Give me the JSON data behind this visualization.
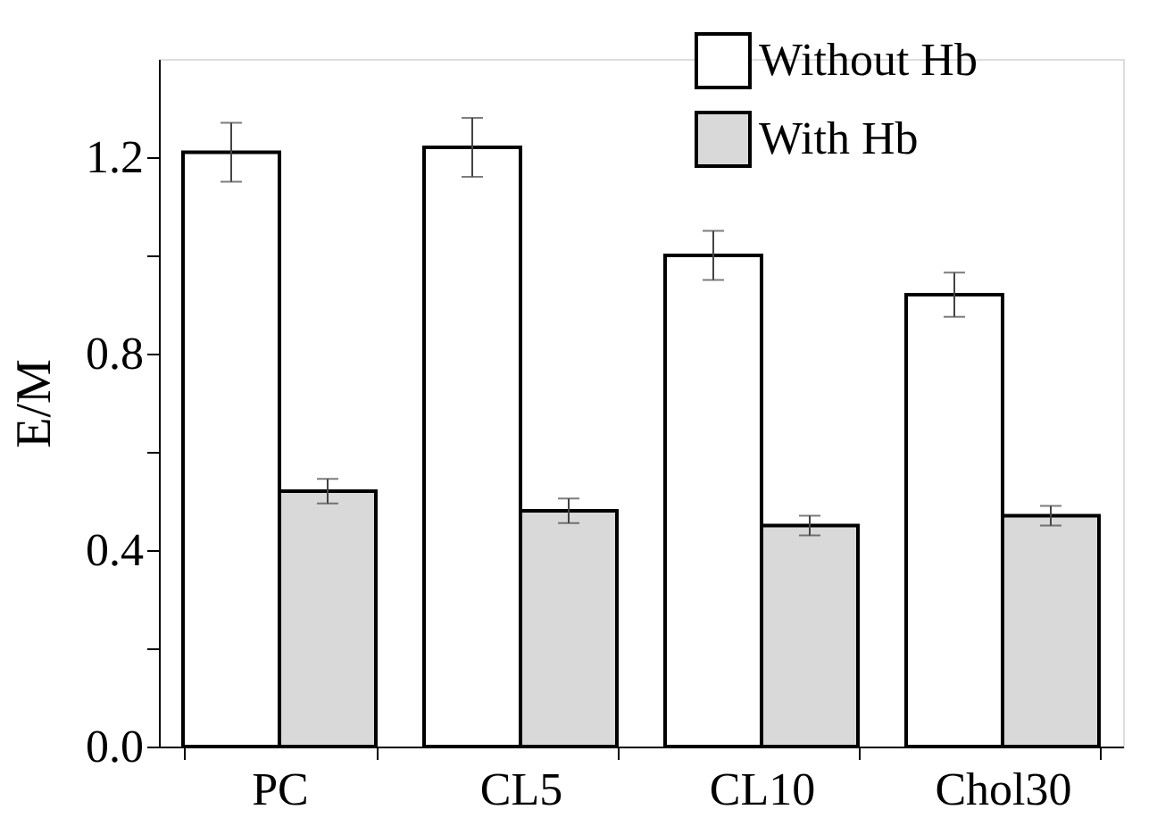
{
  "chart_data": {
    "type": "bar",
    "ylabel": "E/M",
    "categories": [
      "PC",
      "CL5",
      "CL10",
      "Chol30"
    ],
    "series": [
      {
        "name": "Without Hb",
        "color": "#ffffff",
        "values": [
          1.21,
          1.22,
          1.0,
          0.92
        ],
        "errors": [
          0.06,
          0.06,
          0.05,
          0.045
        ]
      },
      {
        "name": "With Hb",
        "color": "#d9d9d9",
        "values": [
          0.52,
          0.48,
          0.45,
          0.47
        ],
        "errors": [
          0.025,
          0.025,
          0.02,
          0.02
        ]
      }
    ],
    "ylim": [
      0,
      1.4
    ],
    "yticks": [
      {
        "value": 0,
        "label": "0.0"
      },
      {
        "value": 0.2,
        "label": null
      },
      {
        "value": 0.4,
        "label": "0.4"
      },
      {
        "value": 0.6,
        "label": null
      },
      {
        "value": 0.8,
        "label": "0.8"
      },
      {
        "value": 1.0,
        "label": null
      },
      {
        "value": 1.2,
        "label": "1.2"
      }
    ],
    "grid": false,
    "legend": "top right"
  }
}
